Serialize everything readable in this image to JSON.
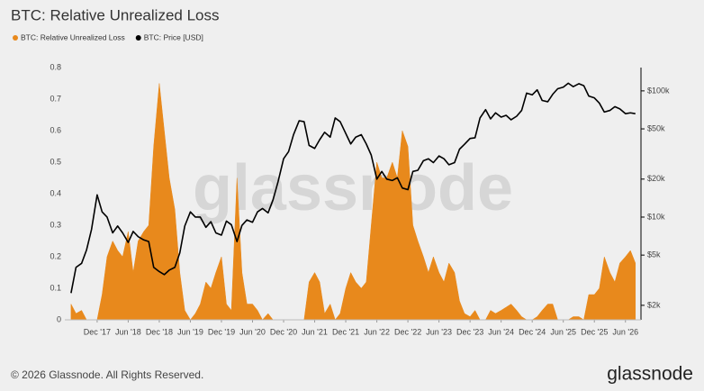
{
  "chart_data": {
    "type": "combo",
    "title": "BTC: Relative Unrealized Loss",
    "watermark": "glassnode",
    "grid": false,
    "xlim": [
      2017.4,
      2026.67
    ],
    "xticks": [
      {
        "value": 2017.92,
        "label": "Dec '17"
      },
      {
        "value": 2018.42,
        "label": "Jun '18"
      },
      {
        "value": 2018.92,
        "label": "Dec '18"
      },
      {
        "value": 2019.42,
        "label": "Jun '19"
      },
      {
        "value": 2019.92,
        "label": "Dec '19"
      },
      {
        "value": 2020.42,
        "label": "Jun '20"
      },
      {
        "value": 2020.92,
        "label": "Dec '20"
      },
      {
        "value": 2021.42,
        "label": "Jun '21"
      },
      {
        "value": 2021.92,
        "label": "Dec '21"
      },
      {
        "value": 2022.42,
        "label": "Jun '22"
      },
      {
        "value": 2022.92,
        "label": "Dec '22"
      },
      {
        "value": 2023.42,
        "label": "Jun '23"
      },
      {
        "value": 2023.92,
        "label": "Dec '23"
      },
      {
        "value": 2024.42,
        "label": "Jun '24"
      },
      {
        "value": 2024.92,
        "label": "Dec '24"
      },
      {
        "value": 2025.42,
        "label": "Jun '25"
      },
      {
        "value": 2025.92,
        "label": "Dec '25"
      },
      {
        "value": 2026.42,
        "label": "Jun '26"
      }
    ],
    "ylim": [
      0,
      0.8
    ],
    "yticks": [
      0,
      0.1,
      0.2,
      0.3,
      0.4,
      0.5,
      0.6,
      0.7,
      0.8
    ],
    "y2scale": "log",
    "y2lim": [
      1535,
      153000
    ],
    "y2ticks": [
      {
        "value": 2000,
        "label": "$2k"
      },
      {
        "value": 5000,
        "label": "$5k"
      },
      {
        "value": 10000,
        "label": "$10k"
      },
      {
        "value": 20000,
        "label": "$20k"
      },
      {
        "value": 50000,
        "label": "$50k"
      },
      {
        "value": 100000,
        "label": "$100k"
      }
    ],
    "x": [
      2017.5,
      2017.58,
      2017.67,
      2017.75,
      2017.83,
      2017.92,
      2018,
      2018.08,
      2018.17,
      2018.25,
      2018.33,
      2018.42,
      2018.5,
      2018.58,
      2018.67,
      2018.75,
      2018.83,
      2018.92,
      2019,
      2019.08,
      2019.17,
      2019.25,
      2019.33,
      2019.42,
      2019.5,
      2019.58,
      2019.67,
      2019.75,
      2019.83,
      2019.92,
      2020,
      2020.08,
      2020.17,
      2020.25,
      2020.33,
      2020.42,
      2020.5,
      2020.58,
      2020.67,
      2020.75,
      2020.83,
      2020.92,
      2021,
      2021.08,
      2021.17,
      2021.25,
      2021.33,
      2021.42,
      2021.5,
      2021.58,
      2021.67,
      2021.75,
      2021.83,
      2021.92,
      2022,
      2022.08,
      2022.17,
      2022.25,
      2022.33,
      2022.42,
      2022.5,
      2022.58,
      2022.67,
      2022.75,
      2022.83,
      2022.92,
      2023,
      2023.08,
      2023.17,
      2023.25,
      2023.33,
      2023.42,
      2023.5,
      2023.58,
      2023.67,
      2023.75,
      2023.83,
      2023.92,
      2024,
      2024.08,
      2024.17,
      2024.25,
      2024.33,
      2024.42,
      2024.5,
      2024.58,
      2024.67,
      2024.75,
      2024.83,
      2024.92,
      2025,
      2025.08,
      2025.17,
      2025.25,
      2025.33,
      2025.42,
      2025.5,
      2025.58,
      2025.67,
      2025.75,
      2025.83,
      2025.92,
      2026,
      2026.08,
      2026.17,
      2026.25,
      2026.33,
      2026.42,
      2026.5,
      2026.58
    ],
    "series": [
      {
        "name": "BTC: Relative Unrealized Loss",
        "type": "area",
        "axis": "y",
        "color": "#e8891c",
        "values": [
          0.05,
          0.02,
          0.03,
          0,
          0,
          0,
          0.08,
          0.2,
          0.25,
          0.22,
          0.2,
          0.28,
          0.15,
          0.25,
          0.28,
          0.3,
          0.55,
          0.75,
          0.6,
          0.45,
          0.35,
          0.15,
          0.03,
          0,
          0.02,
          0.05,
          0.12,
          0.1,
          0.15,
          0.2,
          0.05,
          0.03,
          0.45,
          0.15,
          0.05,
          0.05,
          0.03,
          0,
          0.02,
          0,
          0,
          0,
          0,
          0,
          0,
          0,
          0.12,
          0.15,
          0.12,
          0.02,
          0.05,
          0,
          0.02,
          0.1,
          0.15,
          0.12,
          0.1,
          0.12,
          0.3,
          0.5,
          0.45,
          0.45,
          0.5,
          0.45,
          0.6,
          0.55,
          0.3,
          0.25,
          0.2,
          0.15,
          0.2,
          0.15,
          0.12,
          0.18,
          0.15,
          0.06,
          0.02,
          0.01,
          0.03,
          0,
          0,
          0.03,
          0.02,
          0.03,
          0.04,
          0.05,
          0.03,
          0.01,
          0,
          0,
          0.01,
          0.03,
          0.05,
          0.05,
          0,
          0,
          0,
          0.01,
          0.01,
          0,
          0.08,
          0.08,
          0.1,
          0.2,
          0.15,
          0.12,
          0.18,
          0.2,
          0.22,
          0.18
        ]
      },
      {
        "name": "BTC: Price [USD]",
        "type": "line",
        "axis": "y2",
        "color": "#000000",
        "values": [
          2500,
          4000,
          4300,
          5500,
          8000,
          15000,
          11000,
          10000,
          7500,
          8500,
          7500,
          6300,
          7700,
          7000,
          6600,
          6400,
          4000,
          3700,
          3500,
          3800,
          4000,
          5200,
          8500,
          11000,
          10000,
          10000,
          8300,
          9200,
          7500,
          7200,
          9300,
          8700,
          6400,
          8600,
          9500,
          9100,
          11000,
          11700,
          10800,
          13700,
          19000,
          29000,
          33000,
          45000,
          58000,
          57000,
          37000,
          35000,
          41000,
          47000,
          43000,
          61000,
          57000,
          46000,
          38000,
          43000,
          45000,
          38000,
          31000,
          20000,
          23000,
          20000,
          19500,
          20500,
          17000,
          16500,
          23000,
          23500,
          28000,
          29000,
          27000,
          30500,
          29000,
          26000,
          27000,
          34500,
          37700,
          42000,
          42500,
          61000,
          71000,
          60000,
          67000,
          62000,
          64000,
          59000,
          63000,
          70000,
          96000,
          93000,
          102000,
          84000,
          82000,
          94000,
          104000,
          107000,
          115000,
          108000,
          114000,
          110000,
          91000,
          88000,
          80000,
          68000,
          70000,
          75000,
          72000,
          66000,
          67000,
          66000
        ]
      }
    ]
  },
  "footer": {
    "copyright": "© 2026 Glassnode. All Rights Reserved.",
    "logo": "glassnode"
  }
}
